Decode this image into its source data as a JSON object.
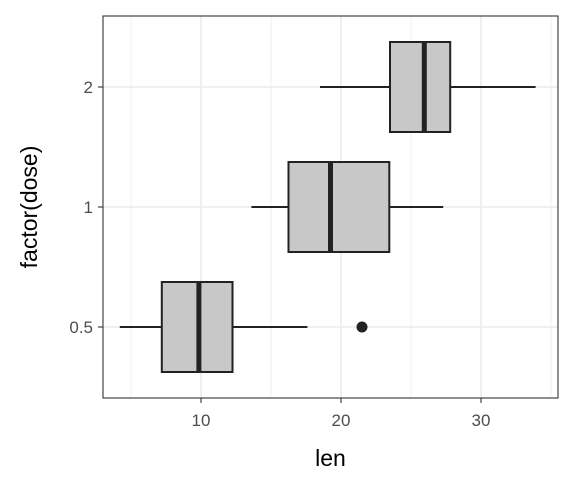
{
  "chart_data": {
    "type": "boxplot",
    "orientation": "horizontal",
    "xlabel": "len",
    "ylabel": "factor(dose)",
    "xlim": [
      3,
      35.5
    ],
    "x_ticks": [
      10,
      20,
      30
    ],
    "x_minor_ticks": [
      5,
      15,
      25,
      35
    ],
    "categories": [
      "0.5",
      "1",
      "2"
    ],
    "grid": true,
    "theme": "bw",
    "box_fill": "#c8c8c8",
    "line_color": "#222222",
    "grid_color": "#ebebeb",
    "boxes": [
      {
        "category": "0.5",
        "whisker_low": 4.2,
        "q1": 7.2,
        "median": 9.85,
        "q3": 12.25,
        "whisker_high": 17.6,
        "outliers": [
          21.5
        ]
      },
      {
        "category": "1",
        "whisker_low": 13.6,
        "q1": 16.25,
        "median": 19.25,
        "q3": 23.45,
        "whisker_high": 27.3,
        "outliers": []
      },
      {
        "category": "2",
        "whisker_low": 18.5,
        "q1": 23.5,
        "median": 25.95,
        "q3": 27.8,
        "whisker_high": 33.9,
        "outliers": []
      }
    ]
  }
}
